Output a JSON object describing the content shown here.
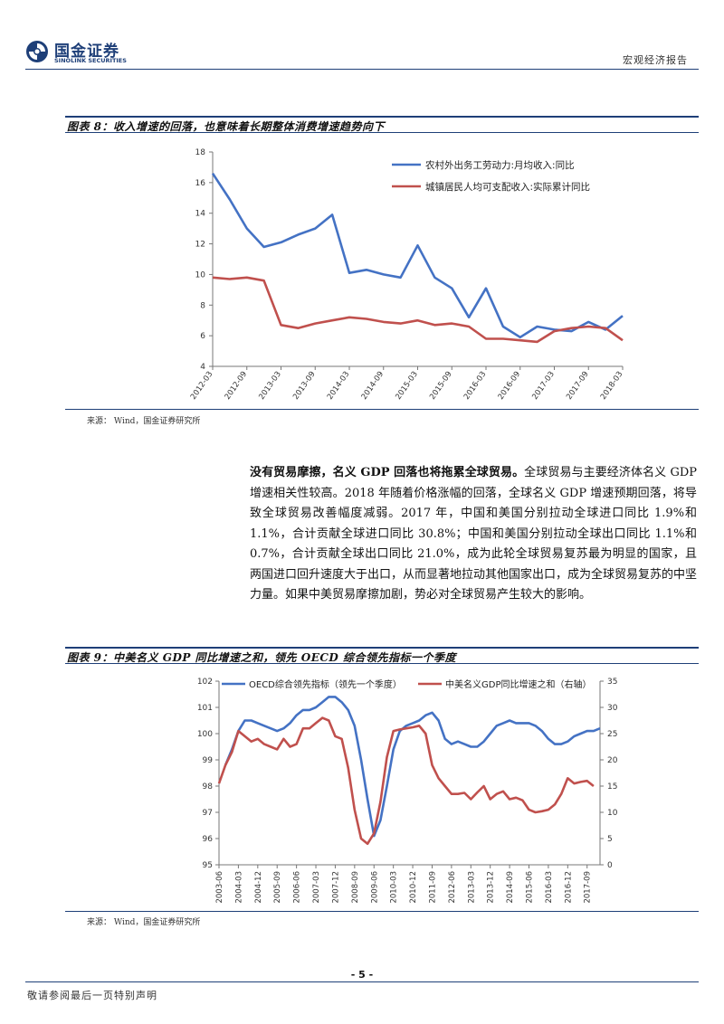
{
  "header": {
    "logo_cn": "国金证券",
    "logo_en": "SINOLINK SECURITIES",
    "report_type": "宏观经济报告"
  },
  "figure8": {
    "caption": "图表 8：收入增速的回落，也意味着长期整体消费增速趋势向下",
    "source": "来源： Wind，国金证券研究所",
    "chart_data": {
      "type": "line",
      "x": [
        "2012-03",
        "2012-06",
        "2012-09",
        "2012-12",
        "2013-03",
        "2013-06",
        "2013-09",
        "2013-12",
        "2014-03",
        "2014-06",
        "2014-09",
        "2014-12",
        "2015-03",
        "2015-06",
        "2015-09",
        "2015-12",
        "2016-03",
        "2016-06",
        "2016-09",
        "2016-12",
        "2017-03",
        "2017-06",
        "2017-09",
        "2017-12",
        "2018-03"
      ],
      "x_ticks": [
        "2012-03",
        "2012-09",
        "2013-03",
        "2013-09",
        "2014-03",
        "2014-09",
        "2015-03",
        "2015-09",
        "2016-03",
        "2016-09",
        "2017-03",
        "2017-09",
        "2018-03"
      ],
      "ylim": [
        4,
        18
      ],
      "y_ticks": [
        "4",
        "6",
        "8",
        "10",
        "12",
        "14",
        "16",
        "18"
      ],
      "legend_position": "top-right",
      "series": [
        {
          "name": "农村外出务工劳动力:月均收入:同比",
          "color": "#4472c4",
          "values": [
            16.6,
            14.9,
            13.0,
            11.8,
            12.1,
            12.6,
            13.0,
            13.9,
            10.1,
            10.3,
            10.0,
            9.8,
            11.9,
            9.8,
            9.1,
            7.2,
            9.1,
            6.6,
            5.9,
            6.6,
            6.4,
            6.3,
            6.9,
            6.4,
            7.3
          ]
        },
        {
          "name": "城镇居民人均可支配收入:实际累计同比",
          "color": "#c0504d",
          "values": [
            9.8,
            9.7,
            9.8,
            9.6,
            6.7,
            6.5,
            6.8,
            7.0,
            7.2,
            7.1,
            6.9,
            6.8,
            7.0,
            6.7,
            6.8,
            6.6,
            5.8,
            5.8,
            5.7,
            5.6,
            6.3,
            6.5,
            6.6,
            6.5,
            5.7
          ]
        }
      ]
    }
  },
  "paragraph": {
    "lead": "没有贸易摩擦，名义 GDP 回落也将拖累全球贸易。",
    "body": "全球贸易与主要经济体名义 GDP 增速相关性较高。2018 年随着价格涨幅的回落，全球名义 GDP 增速预期回落，将导致全球贸易改善幅度减弱。2017 年，中国和美国分别拉动全球进口同比 1.9%和 1.1%，合计贡献全球进口同比 30.8%；中国和美国分别拉动全球出口同比 1.1%和 0.7%，合计贡献全球出口同比 21.0%，成为此轮全球贸易复苏最为明显的国家，且两国进口回升速度大于出口，从而显著地拉动其他国家出口，成为全球贸易复苏的中坚力量。如果中美贸易摩擦加剧，势必对全球贸易产生较大的影响。"
  },
  "figure9": {
    "caption": "图表 9：中美名义 GDP 同比增速之和，领先 OECD 综合领先指标一个季度",
    "source": "来源： Wind，国金证券研究所",
    "chart_data": {
      "type": "line",
      "x_ticks": [
        "2003-06",
        "2004-03",
        "2004-12",
        "2005-09",
        "2006-06",
        "2007-03",
        "2007-12",
        "2008-09",
        "2009-06",
        "2010-03",
        "2010-12",
        "2011-09",
        "2012-06",
        "2013-03",
        "2013-12",
        "2014-09",
        "2015-06",
        "2016-03",
        "2016-12",
        "2017-09"
      ],
      "x_range": [
        "2003-06",
        "2018-03"
      ],
      "ylim_left": [
        95,
        102
      ],
      "y_ticks_left": [
        "95",
        "96",
        "97",
        "98",
        "99",
        "100",
        "101",
        "102"
      ],
      "ylim_right": [
        0,
        35
      ],
      "y_ticks_right": [
        "0",
        "5",
        "10",
        "15",
        "20",
        "25",
        "30",
        "35"
      ],
      "legend_position": "top",
      "series": [
        {
          "name": "OECD综合领先指标（领先一个季度）",
          "axis": "left",
          "color": "#4472c4",
          "x": [
            "2003-09",
            "2003-12",
            "2004-03",
            "2004-06",
            "2004-09",
            "2004-12",
            "2005-03",
            "2005-06",
            "2005-09",
            "2005-12",
            "2006-03",
            "2006-06",
            "2006-09",
            "2006-12",
            "2007-03",
            "2007-06",
            "2007-09",
            "2007-12",
            "2008-03",
            "2008-06",
            "2008-09",
            "2008-12",
            "2009-03",
            "2009-06",
            "2009-09",
            "2009-12",
            "2010-03",
            "2010-06",
            "2010-09",
            "2010-12",
            "2011-03",
            "2011-06",
            "2011-09",
            "2011-12",
            "2012-03",
            "2012-06",
            "2012-09",
            "2012-12",
            "2013-03",
            "2013-06",
            "2013-09",
            "2013-12",
            "2014-03",
            "2014-06",
            "2014-09",
            "2014-12",
            "2015-03",
            "2015-06",
            "2015-09",
            "2015-12",
            "2016-03",
            "2016-06",
            "2016-09",
            "2016-12",
            "2017-03",
            "2017-06",
            "2017-09",
            "2017-12",
            "2018-03"
          ],
          "values": [
            98.8,
            99.4,
            100.1,
            100.5,
            100.5,
            100.4,
            100.3,
            100.2,
            100.1,
            100.2,
            100.4,
            100.7,
            100.9,
            100.9,
            101.0,
            101.2,
            101.4,
            101.4,
            101.2,
            100.9,
            100.3,
            99.0,
            97.5,
            96.1,
            96.7,
            98.0,
            99.4,
            100.1,
            100.3,
            100.4,
            100.5,
            100.7,
            100.8,
            100.5,
            99.8,
            99.6,
            99.7,
            99.6,
            99.5,
            99.5,
            99.7,
            100.0,
            100.3,
            100.4,
            100.5,
            100.4,
            100.4,
            100.4,
            100.3,
            100.1,
            99.8,
            99.6,
            99.6,
            99.7,
            99.9,
            100.0,
            100.1,
            100.1,
            100.2
          ]
        },
        {
          "name": "中美名义GDP同比增速之和（右轴）",
          "axis": "right",
          "color": "#c0504d",
          "x": [
            "2003-06",
            "2003-09",
            "2003-12",
            "2004-03",
            "2004-06",
            "2004-09",
            "2004-12",
            "2005-03",
            "2005-06",
            "2005-09",
            "2005-12",
            "2006-03",
            "2006-06",
            "2006-09",
            "2006-12",
            "2007-03",
            "2007-06",
            "2007-09",
            "2007-12",
            "2008-03",
            "2008-06",
            "2008-09",
            "2008-12",
            "2009-03",
            "2009-06",
            "2009-09",
            "2009-12",
            "2010-03",
            "2010-06",
            "2010-09",
            "2010-12",
            "2011-03",
            "2011-06",
            "2011-09",
            "2011-12",
            "2012-03",
            "2012-06",
            "2012-09",
            "2012-12",
            "2013-03",
            "2013-06",
            "2013-09",
            "2013-12",
            "2014-03",
            "2014-06",
            "2014-09",
            "2014-12",
            "2015-03",
            "2015-06",
            "2015-09",
            "2015-12",
            "2016-03",
            "2016-06",
            "2016-09",
            "2016-12",
            "2017-03",
            "2017-06",
            "2017-09",
            "2017-12"
          ],
          "values": [
            15.5,
            19.0,
            21.5,
            25.5,
            24.5,
            23.5,
            24.0,
            23.0,
            22.5,
            22.0,
            24.0,
            22.5,
            23.0,
            26.0,
            26.0,
            27.0,
            28.0,
            27.5,
            24.5,
            24.0,
            18.5,
            10.5,
            5.0,
            4.0,
            6.0,
            12.0,
            20.5,
            25.5,
            25.8,
            26.0,
            26.2,
            26.5,
            25.0,
            19.0,
            16.5,
            15.0,
            13.5,
            13.5,
            13.7,
            12.5,
            13.8,
            15.0,
            12.5,
            13.5,
            14.0,
            12.5,
            12.8,
            12.3,
            10.5,
            10.0,
            10.2,
            10.5,
            11.5,
            13.5,
            16.5,
            15.5,
            15.8,
            16.0,
            15.0
          ]
        }
      ]
    }
  },
  "footer": {
    "page_number": "- 5 -",
    "disclaimer": "敬请参阅最后一页特别声明"
  }
}
